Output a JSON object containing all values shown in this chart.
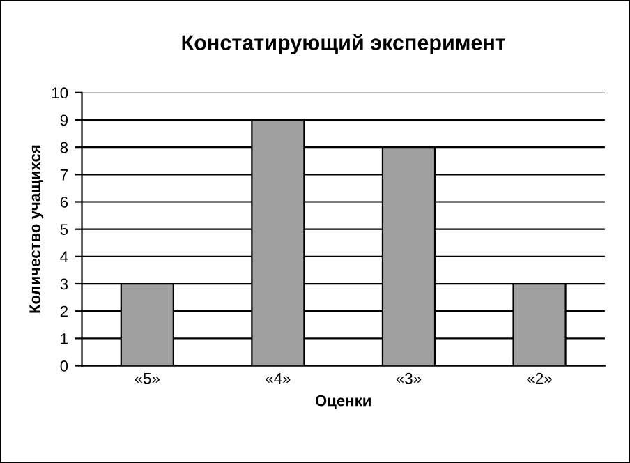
{
  "chart_data": {
    "type": "bar",
    "title": "Констатирующий эксперимент",
    "xlabel": "Оценки",
    "ylabel": "Количество учащихся",
    "categories": [
      "«5»",
      "«4»",
      "«3»",
      "«2»"
    ],
    "values": [
      3,
      9,
      8,
      3
    ],
    "color": "#a0a0a0",
    "ylim": [
      0,
      10
    ],
    "yticks": [
      0,
      1,
      2,
      3,
      4,
      5,
      6,
      7,
      8,
      9,
      10
    ],
    "grid": "y",
    "legend": false
  }
}
